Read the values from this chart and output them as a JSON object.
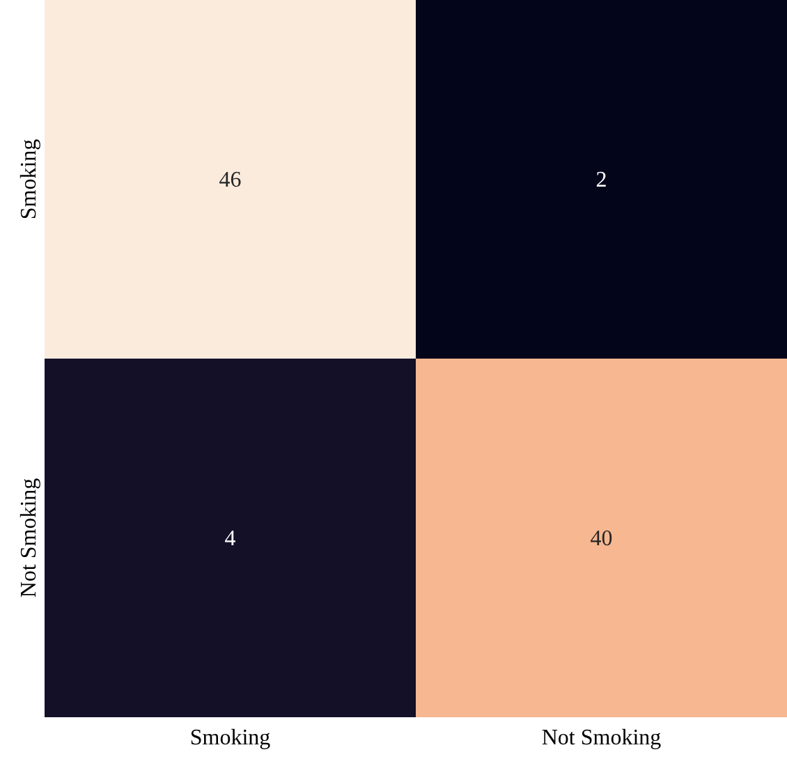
{
  "chart_data": {
    "type": "heatmap",
    "categories": [
      "Smoking",
      "Not Smoking"
    ],
    "y_categories": [
      "Smoking",
      "Not Smoking"
    ],
    "cells": [
      [
        46,
        2
      ],
      [
        4,
        40
      ]
    ],
    "data_labels": true
  }
}
